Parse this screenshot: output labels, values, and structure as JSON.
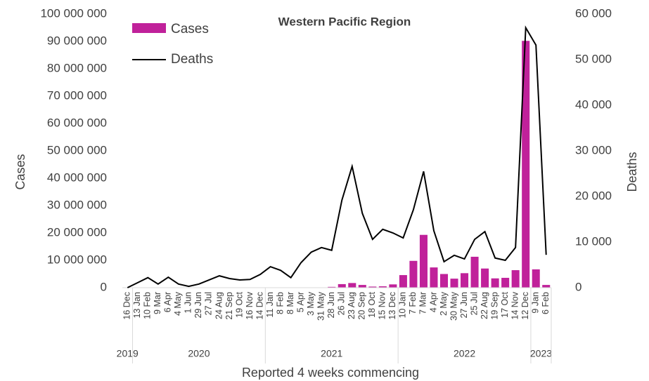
{
  "chart_data": {
    "type": "bar_line",
    "title": "Western Pacific Region",
    "x_label": "Reported 4 weeks commencing",
    "y_label": "Cases",
    "y2_label": "Deaths",
    "categories": [
      "16 Dec",
      "13 Jan",
      "10 Feb",
      "9 Mar",
      "6 Apr",
      "4 May",
      "1 Jun",
      "29 Jun",
      "27 Jul",
      "24 Aug",
      "21 Sep",
      "19 Oct",
      "16 Nov",
      "14 Dec",
      "11 Jan",
      "8 Feb",
      "8 Mar",
      "5 Apr",
      "3 May",
      "31 May",
      "28 Jun",
      "26 Jul",
      "23 Aug",
      "20 Sep",
      "18 Oct",
      "15 Nov",
      "13 Dec",
      "10 Jan",
      "7 Feb",
      "7 Mar",
      "4 Apr",
      "2 May",
      "30 May",
      "27 Jun",
      "25 Jul",
      "22 Aug",
      "19 Sep",
      "17 Oct",
      "14 Nov",
      "12 Dec",
      "9 Jan",
      "6 Feb"
    ],
    "year_labels": [
      "2019",
      "2020",
      "2021",
      "2022",
      "2023"
    ],
    "series": [
      {
        "name": "Cases",
        "kind": "bar",
        "color": "#c0219a",
        "values": [
          0,
          0,
          0,
          0,
          0,
          0,
          0,
          0,
          0,
          0,
          0,
          0,
          0,
          0,
          0,
          0,
          0,
          0,
          0,
          0,
          300000,
          1300000,
          1700000,
          1000000,
          400000,
          500000,
          1200000,
          4600000,
          9800000,
          19300000,
          7400000,
          5000000,
          3300000,
          5300000,
          11300000,
          7000000,
          3400000,
          3600000,
          6400000,
          90200000,
          6700000,
          1000000
        ]
      },
      {
        "name": "Deaths",
        "kind": "line",
        "axis": "y2",
        "color": "#000000",
        "values": [
          0,
          1100,
          2200,
          800,
          2300,
          800,
          300,
          800,
          1700,
          2600,
          2000,
          1700,
          1800,
          2900,
          4600,
          3800,
          2200,
          5500,
          7800,
          8800,
          8200,
          19200,
          26600,
          16300,
          10600,
          12800,
          12000,
          10900,
          17100,
          25500,
          12500,
          5700,
          7100,
          6300,
          10600,
          12300,
          6500,
          6000,
          8800,
          57000,
          53200,
          7200
        ]
      }
    ],
    "ylim": [
      0,
      100000000
    ],
    "yticks": [
      0,
      {
        "value": 10000000,
        "label": "10 000 000"
      },
      {
        "value": 20000000,
        "label": "20 000 000"
      },
      {
        "value": 30000000,
        "label": "30 000 000"
      },
      {
        "value": 40000000,
        "label": "40 000 000"
      },
      {
        "value": 50000000,
        "label": "50 000 000"
      },
      {
        "value": 60000000,
        "label": "60 000 000"
      },
      {
        "value": 70000000,
        "label": "70 000 000"
      },
      {
        "value": 80000000,
        "label": "80 000 000"
      },
      {
        "value": 90000000,
        "label": "90 000 000"
      },
      {
        "value": 100000000,
        "label": "100 000 000"
      }
    ],
    "y2lim": [
      0,
      60000
    ],
    "y2ticks": [
      0,
      {
        "value": 10000,
        "label": "10 000"
      },
      {
        "value": 20000,
        "label": "20 000"
      },
      {
        "value": 30000,
        "label": "30 000"
      },
      {
        "value": 40000,
        "label": "40 000"
      },
      {
        "value": 50000,
        "label": "50 000"
      },
      {
        "value": 60000,
        "label": "60 000"
      }
    ]
  }
}
